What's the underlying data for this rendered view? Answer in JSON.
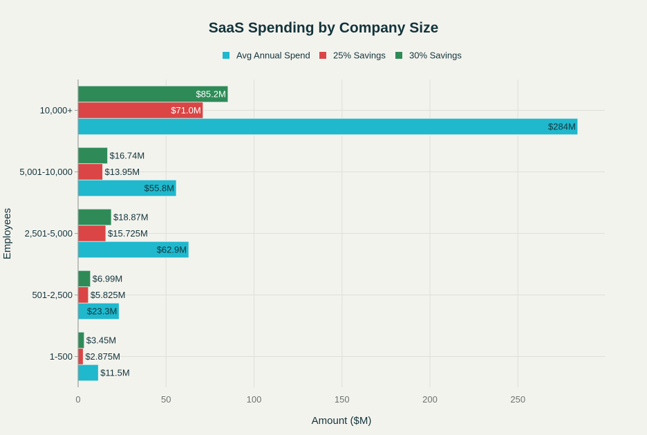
{
  "chart_data": {
    "type": "bar",
    "orientation": "horizontal",
    "title": "SaaS Spending by Company Size",
    "xlabel": "Amount ($M)",
    "ylabel": "Employees",
    "xlim": [
      0,
      299.4
    ],
    "xticks": [
      0,
      50,
      100,
      150,
      200,
      250
    ],
    "grid": true,
    "legend_position": "top",
    "categories": [
      "10,000+",
      "5,001-10,000",
      "2,501-5,000",
      "501-2,500",
      "1-500"
    ],
    "series": [
      {
        "name": "Avg Annual Spend",
        "color": "#1fb8cd",
        "values": [
          284,
          55.8,
          62.9,
          23.3,
          11.5
        ],
        "labels": [
          "$284M",
          "$55.8M",
          "$62.9M",
          "$23.3M",
          "$11.5M"
        ]
      },
      {
        "name": "25% Savings",
        "color": "#db4545",
        "values": [
          71.0,
          13.95,
          15.725,
          5.825,
          2.875
        ],
        "labels": [
          "$71.0M",
          "$13.95M",
          "$15.725M",
          "$5.825M",
          "$2.875M"
        ]
      },
      {
        "name": "30% Savings",
        "color": "#2e8b57",
        "values": [
          85.2,
          16.74,
          18.87,
          6.99,
          3.45
        ],
        "labels": [
          "$85.2M",
          "$16.74M",
          "$18.87M",
          "$6.99M",
          "$3.45M"
        ]
      }
    ]
  }
}
